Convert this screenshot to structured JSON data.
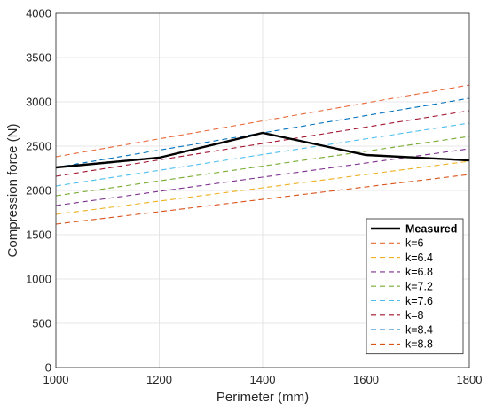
{
  "chart_data": {
    "type": "line",
    "title": "",
    "xlabel": "Perimeter (mm)",
    "ylabel": "Compression force (N)",
    "xlim": [
      1000,
      1800
    ],
    "ylim": [
      0,
      4000
    ],
    "x_ticks": [
      "1000",
      "1200",
      "1400",
      "1600",
      "1800"
    ],
    "y_ticks": [
      "0",
      "500",
      "1000",
      "1500",
      "2000",
      "2500",
      "3000",
      "3500",
      "4000"
    ],
    "grid": true,
    "legend_position": "bottom-right",
    "series": [
      {
        "name": "Measured",
        "color": "#000000",
        "style": "solid",
        "x": [
          1000,
          1200,
          1400,
          1600,
          1800
        ],
        "y": [
          2260,
          2370,
          2650,
          2400,
          2340
        ]
      },
      {
        "name": "k=6",
        "color": "#e8693a",
        "style": "dashed",
        "x": [
          1000,
          1800
        ],
        "y": [
          2380,
          3190
        ]
      },
      {
        "name": "k=6.4",
        "color": "#edb120",
        "style": "dashed",
        "x": [
          1000,
          1800
        ],
        "y": [
          1730,
          2330
        ]
      },
      {
        "name": "k=6.8",
        "color": "#7e2f8e",
        "style": "dashed",
        "x": [
          1000,
          1800
        ],
        "y": [
          1830,
          2470
        ]
      },
      {
        "name": "k=7.2",
        "color": "#77ac30",
        "style": "dashed",
        "x": [
          1000,
          1800
        ],
        "y": [
          1940,
          2610
        ]
      },
      {
        "name": "k=7.6",
        "color": "#4dbeee",
        "style": "dashed",
        "x": [
          1000,
          1800
        ],
        "y": [
          2050,
          2760
        ]
      },
      {
        "name": "k=8",
        "color": "#a2142f",
        "style": "dashed",
        "x": [
          1000,
          1800
        ],
        "y": [
          2160,
          2900
        ]
      },
      {
        "name": "k=8.4",
        "color": "#0072bd",
        "style": "dashed",
        "x": [
          1000,
          1800
        ],
        "y": [
          2260,
          3040
        ]
      },
      {
        "name": "k=8.8",
        "color": "#d95319",
        "style": "dashed",
        "x": [
          1000,
          1800
        ],
        "y": [
          1620,
          2180
        ]
      }
    ]
  }
}
